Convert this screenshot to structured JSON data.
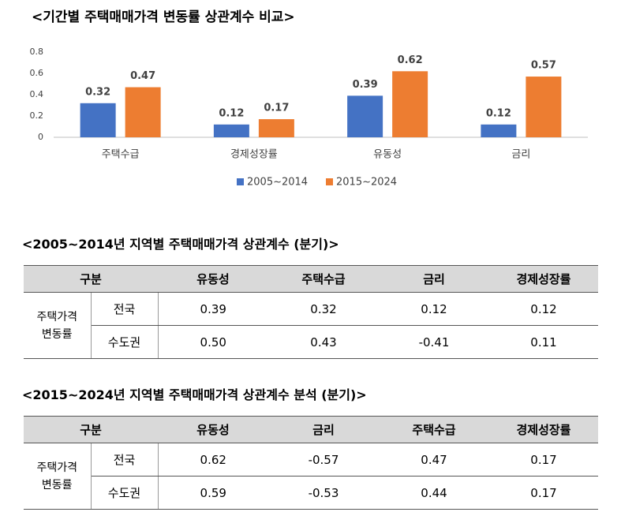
{
  "chart_data": {
    "type": "bar",
    "title": "<기간별 주택매매가격 변동률 상관계수 비교>",
    "categories": [
      "주택수급",
      "경제성장률",
      "유동성",
      "금리"
    ],
    "series": [
      {
        "name": "2005~2014",
        "color": "#4472c4",
        "values": [
          0.32,
          0.12,
          0.39,
          0.12
        ]
      },
      {
        "name": "2015~2024",
        "color": "#ed7d31",
        "values": [
          0.47,
          0.17,
          0.62,
          0.57
        ]
      }
    ],
    "ylim": [
      0,
      0.8
    ],
    "yticks": [
      0,
      0.2,
      0.4,
      0.6,
      0.8
    ],
    "grid": false,
    "legend": "bottom"
  },
  "tables": [
    {
      "title": "<2005~2014년 지역별 주택매매가격 상관계수 (분기)>",
      "header": [
        "구분",
        "유동성",
        "주택수급",
        "금리",
        "경제성장률"
      ],
      "group_label": [
        "주택가격",
        "변동률"
      ],
      "rows": [
        [
          "전국",
          "0.39",
          "0.32",
          "0.12",
          "0.12"
        ],
        [
          "수도권",
          "0.50",
          "0.43",
          "-0.41",
          "0.11"
        ]
      ]
    },
    {
      "title": "<2015~2024년 지역별 주택매매가격 상관계수 분석 (분기)>",
      "header": [
        "구분",
        "유동성",
        "금리",
        "주택수급",
        "경제성장률"
      ],
      "group_label": [
        "주택가격",
        "변동률"
      ],
      "rows": [
        [
          "전국",
          "0.62",
          "-0.57",
          "0.47",
          "0.17"
        ],
        [
          "수도권",
          "0.59",
          "-0.53",
          "0.44",
          "0.17"
        ]
      ]
    }
  ]
}
